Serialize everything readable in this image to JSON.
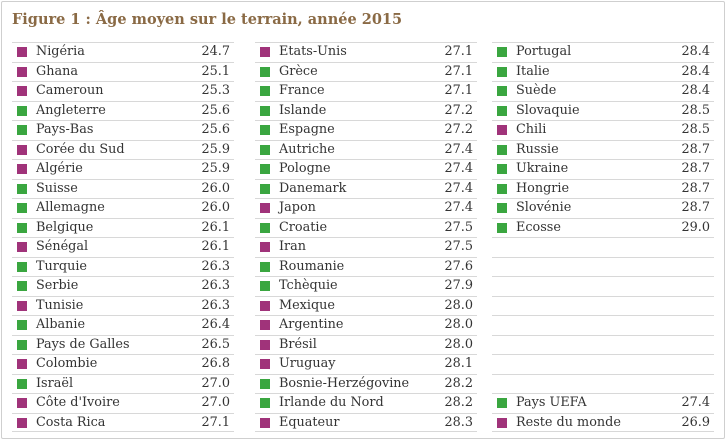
{
  "title": "Figure 1 : Âge moyen sur le terrain, année 2015",
  "colors": {
    "purple": "#a0337a",
    "green": "#3aa640",
    "title": "#8a6a45"
  },
  "columns": [
    [
      {
        "name": "Nigéria",
        "value": "24.7",
        "color": "purple"
      },
      {
        "name": "Ghana",
        "value": "25.1",
        "color": "purple"
      },
      {
        "name": "Cameroun",
        "value": "25.3",
        "color": "purple"
      },
      {
        "name": "Angleterre",
        "value": "25.6",
        "color": "green"
      },
      {
        "name": "Pays-Bas",
        "value": "25.6",
        "color": "green"
      },
      {
        "name": "Corée du Sud",
        "value": "25.9",
        "color": "purple"
      },
      {
        "name": "Algérie",
        "value": "25.9",
        "color": "purple"
      },
      {
        "name": "Suisse",
        "value": "26.0",
        "color": "green"
      },
      {
        "name": "Allemagne",
        "value": "26.0",
        "color": "green"
      },
      {
        "name": "Belgique",
        "value": "26.1",
        "color": "green"
      },
      {
        "name": "Sénégal",
        "value": "26.1",
        "color": "purple"
      },
      {
        "name": "Turquie",
        "value": "26.3",
        "color": "green"
      },
      {
        "name": "Serbie",
        "value": "26.3",
        "color": "green"
      },
      {
        "name": "Tunisie",
        "value": "26.3",
        "color": "purple"
      },
      {
        "name": "Albanie",
        "value": "26.4",
        "color": "green"
      },
      {
        "name": "Pays de Galles",
        "value": "26.5",
        "color": "green"
      },
      {
        "name": "Colombie",
        "value": "26.8",
        "color": "purple"
      },
      {
        "name": "Israël",
        "value": "27.0",
        "color": "green"
      },
      {
        "name": "Côte d'Ivoire",
        "value": "27.0",
        "color": "purple"
      },
      {
        "name": "Costa Rica",
        "value": "27.1",
        "color": "purple"
      }
    ],
    [
      {
        "name": "Etats-Unis",
        "value": "27.1",
        "color": "purple"
      },
      {
        "name": "Grèce",
        "value": "27.1",
        "color": "green"
      },
      {
        "name": "France",
        "value": "27.1",
        "color": "green"
      },
      {
        "name": "Islande",
        "value": "27.2",
        "color": "green"
      },
      {
        "name": "Espagne",
        "value": "27.2",
        "color": "green"
      },
      {
        "name": "Autriche",
        "value": "27.4",
        "color": "green"
      },
      {
        "name": "Pologne",
        "value": "27.4",
        "color": "green"
      },
      {
        "name": "Danemark",
        "value": "27.4",
        "color": "green"
      },
      {
        "name": "Japon",
        "value": "27.4",
        "color": "purple"
      },
      {
        "name": "Croatie",
        "value": "27.5",
        "color": "green"
      },
      {
        "name": "Iran",
        "value": "27.5",
        "color": "purple"
      },
      {
        "name": "Roumanie",
        "value": "27.6",
        "color": "green"
      },
      {
        "name": "Tchèquie",
        "value": "27.9",
        "color": "green"
      },
      {
        "name": "Mexique",
        "value": "28.0",
        "color": "purple"
      },
      {
        "name": "Argentine",
        "value": "28.0",
        "color": "purple"
      },
      {
        "name": "Brésil",
        "value": "28.0",
        "color": "purple"
      },
      {
        "name": "Uruguay",
        "value": "28.1",
        "color": "purple"
      },
      {
        "name": "Bosnie-Herzégovine",
        "value": "28.2",
        "color": "green"
      },
      {
        "name": "Irlande du Nord",
        "value": "28.2",
        "color": "green"
      },
      {
        "name": "Equateur",
        "value": "28.3",
        "color": "purple"
      }
    ],
    [
      {
        "name": "Portugal",
        "value": "28.4",
        "color": "green"
      },
      {
        "name": "Italie",
        "value": "28.4",
        "color": "green"
      },
      {
        "name": "Suède",
        "value": "28.4",
        "color": "green"
      },
      {
        "name": "Slovaquie",
        "value": "28.5",
        "color": "green"
      },
      {
        "name": "Chili",
        "value": "28.5",
        "color": "purple"
      },
      {
        "name": "Russie",
        "value": "28.7",
        "color": "green"
      },
      {
        "name": "Ukraine",
        "value": "28.7",
        "color": "green"
      },
      {
        "name": "Hongrie",
        "value": "28.7",
        "color": "green"
      },
      {
        "name": "Slovénie",
        "value": "28.7",
        "color": "green"
      },
      {
        "name": "Ecosse",
        "value": "29.0",
        "color": "green"
      },
      null,
      null,
      null,
      null,
      null,
      null,
      null,
      null,
      {
        "name": "Pays UEFA",
        "value": "27.4",
        "color": "green"
      },
      {
        "name": "Reste du monde",
        "value": "26.9",
        "color": "purple"
      }
    ]
  ]
}
